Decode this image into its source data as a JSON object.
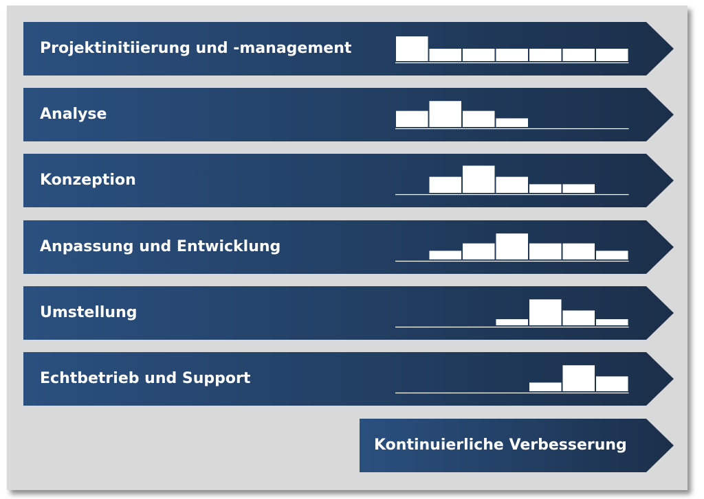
{
  "colors": {
    "arrow_left": "#2a507f",
    "arrow_right": "#1b2f4a",
    "panel": "#d9d9d9",
    "bars": "#ffffff"
  },
  "phases": [
    {
      "label": "Projektinitiierung und -management",
      "effort": [
        2,
        1,
        1,
        1,
        1,
        1,
        1
      ]
    },
    {
      "label": "Analyse",
      "effort": [
        1.3,
        2.1,
        1.3,
        0.7,
        0,
        0,
        0
      ]
    },
    {
      "label": "Konzeption",
      "effort": [
        0,
        1.3,
        2.2,
        1.3,
        0.7,
        0.7,
        0
      ]
    },
    {
      "label": "Anpassung und Entwicklung",
      "effort": [
        0,
        0.7,
        1.3,
        2.1,
        1.3,
        1.3,
        0.7
      ]
    },
    {
      "label": "Umstellung",
      "effort": [
        0,
        0,
        0,
        0.5,
        2.1,
        1.2,
        0.5
      ]
    },
    {
      "label": "Echtbetrieb und Support",
      "effort": [
        0,
        0,
        0,
        0,
        0.7,
        2.1,
        1.2
      ]
    }
  ],
  "final_phase": {
    "label": "Kontinuierliche Verbesserung"
  }
}
